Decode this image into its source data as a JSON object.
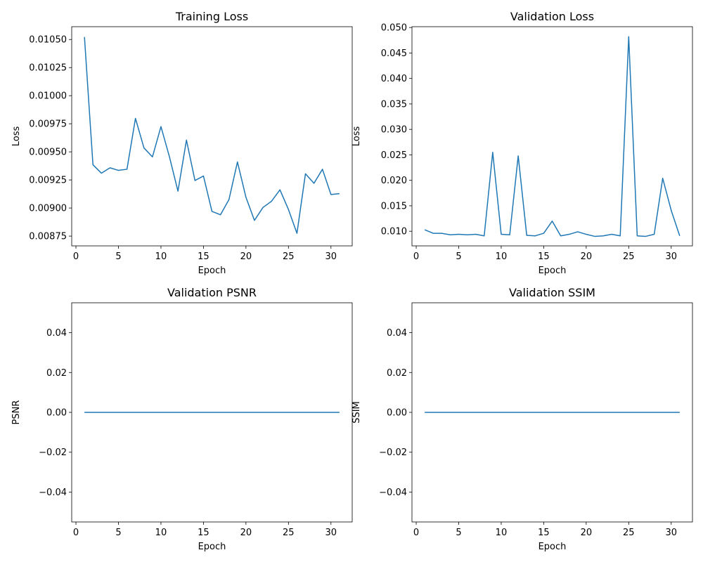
{
  "chart_data": [
    {
      "type": "line",
      "title": "Training Loss",
      "xlabel": "Epoch",
      "ylabel": "Loss",
      "xlim": [
        -0.5,
        32.5
      ],
      "ylim": [
        0.008663,
        0.010614
      ],
      "xticks": [
        0,
        5,
        10,
        15,
        20,
        25,
        30
      ],
      "xtick_labels": [
        "0",
        "5",
        "10",
        "15",
        "20",
        "25",
        "30"
      ],
      "yticks": [
        0.00875,
        0.009,
        0.00925,
        0.0095,
        0.00975,
        0.01,
        0.01025,
        0.0105
      ],
      "ytick_labels": [
        "0.00875",
        "0.00900",
        "0.00925",
        "0.00950",
        "0.00975",
        "0.01000",
        "0.01025",
        "0.01050"
      ],
      "grid": false,
      "color": "#1f77b4",
      "series": [
        {
          "x": [
            1,
            2,
            3,
            4,
            5,
            6,
            7,
            8,
            9,
            10,
            11,
            12,
            13,
            14,
            15,
            16,
            17,
            18,
            19,
            20,
            21,
            22,
            23,
            24,
            25,
            26,
            27,
            28,
            29,
            30,
            31
          ],
          "values": [
            0.010522,
            0.009385,
            0.00931,
            0.009358,
            0.009335,
            0.009345,
            0.009798,
            0.009535,
            0.009455,
            0.009725,
            0.009455,
            0.00915,
            0.009605,
            0.009245,
            0.009285,
            0.00897,
            0.00894,
            0.009075,
            0.00941,
            0.009095,
            0.00889,
            0.009005,
            0.00906,
            0.009162,
            0.008987,
            0.008775,
            0.009305,
            0.00922,
            0.009345,
            0.00912,
            0.009128
          ]
        }
      ]
    },
    {
      "type": "line",
      "title": "Validation Loss",
      "xlabel": "Epoch",
      "ylabel": "Loss",
      "xlim": [
        -0.5,
        32.5
      ],
      "ylim": [
        0.00713,
        0.05016
      ],
      "xticks": [
        0,
        5,
        10,
        15,
        20,
        25,
        30
      ],
      "xtick_labels": [
        "0",
        "5",
        "10",
        "15",
        "20",
        "25",
        "30"
      ],
      "yticks": [
        0.01,
        0.015,
        0.02,
        0.025,
        0.03,
        0.035,
        0.04,
        0.045,
        0.05
      ],
      "ytick_labels": [
        "0.010",
        "0.015",
        "0.020",
        "0.025",
        "0.030",
        "0.035",
        "0.040",
        "0.045",
        "0.050"
      ],
      "grid": false,
      "color": "#1f77b4",
      "series": [
        {
          "x": [
            1,
            2,
            3,
            4,
            5,
            6,
            7,
            8,
            9,
            10,
            11,
            12,
            13,
            14,
            15,
            16,
            17,
            18,
            19,
            20,
            21,
            22,
            23,
            24,
            25,
            26,
            27,
            28,
            29,
            30,
            31
          ],
          "values": [
            0.0103,
            0.0096,
            0.0096,
            0.0093,
            0.0094,
            0.0093,
            0.0094,
            0.0091,
            0.0255,
            0.0094,
            0.0093,
            0.0248,
            0.0092,
            0.0091,
            0.0096,
            0.012,
            0.0091,
            0.0094,
            0.0099,
            0.0094,
            0.009,
            0.0091,
            0.0094,
            0.0091,
            0.0482,
            0.0091,
            0.009,
            0.0094,
            0.0204,
            0.0141,
            0.0091
          ]
        }
      ]
    },
    {
      "type": "line",
      "title": "Validation PSNR",
      "xlabel": "Epoch",
      "ylabel": "PSNR",
      "xlim": [
        -0.5,
        32.5
      ],
      "ylim": [
        -0.055,
        0.055
      ],
      "xticks": [
        0,
        5,
        10,
        15,
        20,
        25,
        30
      ],
      "xtick_labels": [
        "0",
        "5",
        "10",
        "15",
        "20",
        "25",
        "30"
      ],
      "yticks": [
        -0.04,
        -0.02,
        0.0,
        0.02,
        0.04
      ],
      "ytick_labels": [
        "−0.04",
        "−0.02",
        "0.00",
        "0.02",
        "0.04"
      ],
      "grid": false,
      "color": "#1f77b4",
      "series": [
        {
          "x": [
            1,
            2,
            3,
            4,
            5,
            6,
            7,
            8,
            9,
            10,
            11,
            12,
            13,
            14,
            15,
            16,
            17,
            18,
            19,
            20,
            21,
            22,
            23,
            24,
            25,
            26,
            27,
            28,
            29,
            30,
            31
          ],
          "values": [
            0,
            0,
            0,
            0,
            0,
            0,
            0,
            0,
            0,
            0,
            0,
            0,
            0,
            0,
            0,
            0,
            0,
            0,
            0,
            0,
            0,
            0,
            0,
            0,
            0,
            0,
            0,
            0,
            0,
            0,
            0
          ]
        }
      ]
    },
    {
      "type": "line",
      "title": "Validation SSIM",
      "xlabel": "Epoch",
      "ylabel": "SSIM",
      "xlim": [
        -0.5,
        32.5
      ],
      "ylim": [
        -0.055,
        0.055
      ],
      "xticks": [
        0,
        5,
        10,
        15,
        20,
        25,
        30
      ],
      "xtick_labels": [
        "0",
        "5",
        "10",
        "15",
        "20",
        "25",
        "30"
      ],
      "yticks": [
        -0.04,
        -0.02,
        0.0,
        0.02,
        0.04
      ],
      "ytick_labels": [
        "−0.04",
        "−0.02",
        "0.00",
        "0.02",
        "0.04"
      ],
      "grid": false,
      "color": "#1f77b4",
      "series": [
        {
          "x": [
            1,
            2,
            3,
            4,
            5,
            6,
            7,
            8,
            9,
            10,
            11,
            12,
            13,
            14,
            15,
            16,
            17,
            18,
            19,
            20,
            21,
            22,
            23,
            24,
            25,
            26,
            27,
            28,
            29,
            30,
            31
          ],
          "values": [
            0,
            0,
            0,
            0,
            0,
            0,
            0,
            0,
            0,
            0,
            0,
            0,
            0,
            0,
            0,
            0,
            0,
            0,
            0,
            0,
            0,
            0,
            0,
            0,
            0,
            0,
            0,
            0,
            0,
            0,
            0
          ]
        }
      ]
    }
  ]
}
